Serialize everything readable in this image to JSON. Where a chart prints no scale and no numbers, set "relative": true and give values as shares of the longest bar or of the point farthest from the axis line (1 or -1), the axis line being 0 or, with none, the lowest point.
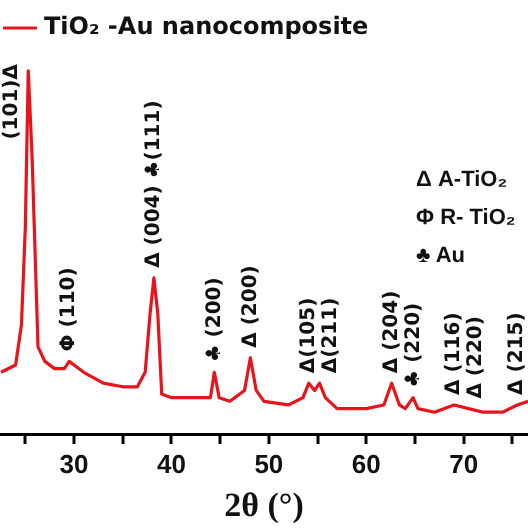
{
  "chart_data": {
    "type": "line",
    "relative": true,
    "xlabel": "2θ (°)",
    "xlim": [
      22.4,
      76.6
    ],
    "xticks": [
      {
        "value": 25,
        "label": null
      },
      30,
      {
        "value": 35,
        "label": null
      },
      40,
      {
        "value": 45,
        "label": null
      },
      50,
      {
        "value": 55,
        "label": null
      },
      60,
      {
        "value": 65,
        "label": null
      },
      70,
      {
        "value": 75,
        "label": null
      }
    ],
    "legend": "top",
    "marker": "none",
    "series": [
      {
        "name": "TiO₂ -Au nanocomposite",
        "color": "#e8141c",
        "x": [
          22.5,
          24,
          24.6,
          25,
          25.3,
          25.7,
          26.3,
          27,
          28,
          29,
          29.5,
          30,
          31,
          33,
          35,
          36.5,
          37.3,
          37.8,
          38.2,
          38.6,
          39,
          40,
          42,
          44,
          44.4,
          44.9,
          46,
          47.5,
          48.1,
          48.7,
          49.5,
          52,
          53.5,
          54.1,
          54.7,
          55.2,
          55.8,
          57,
          60,
          61.8,
          62.6,
          63.4,
          64,
          64.8,
          65.3,
          67,
          69,
          70.5,
          72,
          74,
          75.5,
          76.6
        ],
        "values": [
          0.17,
          0.19,
          0.3,
          0.57,
          1,
          0.76,
          0.24,
          0.2,
          0.18,
          0.18,
          0.2,
          0.19,
          0.17,
          0.14,
          0.13,
          0.13,
          0.17,
          0.33,
          0.43,
          0.33,
          0.11,
          0.1,
          0.1,
          0.1,
          0.17,
          0.1,
          0.09,
          0.12,
          0.21,
          0.12,
          0.09,
          0.08,
          0.1,
          0.14,
          0.12,
          0.14,
          0.1,
          0.07,
          0.07,
          0.08,
          0.14,
          0.08,
          0.07,
          0.1,
          0.07,
          0.06,
          0.08,
          0.07,
          0.06,
          0.06,
          0.08,
          0.09
        ]
      }
    ],
    "annotations": [
      {
        "text": "(101)Δ",
        "x": 25.3,
        "y": 1
      },
      {
        "text": "Φ (110)",
        "x": 29.5,
        "y": 0.2
      },
      {
        "text": "Δ (004) ♣(111)",
        "x": 38.2,
        "y": 0.43
      },
      {
        "text": "♣ (200)",
        "x": 44.4,
        "y": 0.17
      },
      {
        "text": "Δ (200)",
        "x": 48.1,
        "y": 0.21
      },
      {
        "text": "Δ(105)",
        "x": 54.1,
        "y": 0.14
      },
      {
        "text": "Δ(211)",
        "x": 55.2,
        "y": 0.14
      },
      {
        "text": "Δ (204)",
        "x": 62.6,
        "y": 0.14
      },
      {
        "text": "♣ (220)",
        "x": 64.8,
        "y": 0.1
      },
      {
        "text": "Δ (116)",
        "x": 69,
        "y": 0.08
      },
      {
        "text": "Δ (220)",
        "x": 70.5,
        "y": 0.07
      },
      {
        "text": "Δ (215)",
        "x": 75.5,
        "y": 0.08
      },
      "Δ A-TiO₂",
      "Φ R- TiO₂",
      "♣ Au"
    ]
  }
}
